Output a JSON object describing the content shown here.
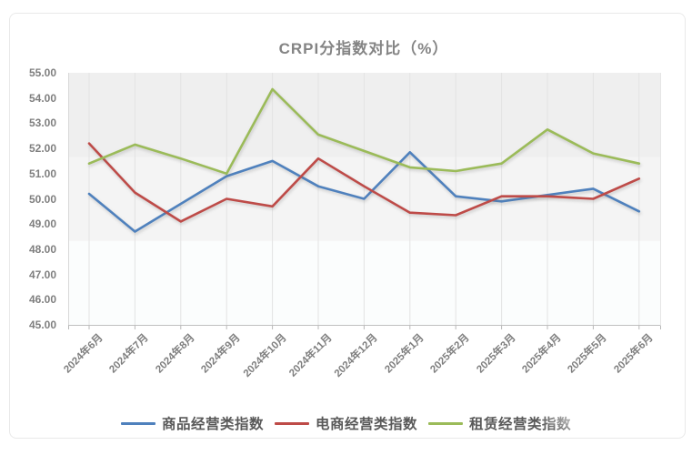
{
  "chart": {
    "title": "CRPI分指数对比（%）"
  },
  "chart_data": {
    "type": "line",
    "title": "CRPI分指数对比（%）",
    "xlabel": "",
    "ylabel": "",
    "ylim": [
      45,
      55
    ],
    "y_tick_step": 1,
    "y_ticks": [
      "55.00",
      "54.00",
      "53.00",
      "52.00",
      "51.00",
      "50.00",
      "49.00",
      "48.00",
      "47.00",
      "46.00",
      "45.00"
    ],
    "grid": "vertical-only",
    "legend_position": "bottom",
    "categories": [
      "2024年6月",
      "2024年7月",
      "2024年8月",
      "2024年9月",
      "2024年10月",
      "2024年11月",
      "2024年12月",
      "2025年1月",
      "2025年2月",
      "2025年3月",
      "2025年4月",
      "2025年5月",
      "2025年6月"
    ],
    "series": [
      {
        "key": "goods",
        "name": "商品经营类指数",
        "color": "#4f81bd",
        "values": [
          50.2,
          48.7,
          49.8,
          50.9,
          51.5,
          50.5,
          50.0,
          51.85,
          50.1,
          49.9,
          50.15,
          50.4,
          49.5
        ]
      },
      {
        "key": "ecommerce",
        "name": "电商经营类指数",
        "color": "#be4b48",
        "values": [
          52.2,
          50.25,
          49.1,
          50.0,
          49.7,
          51.6,
          50.5,
          49.45,
          49.35,
          50.1,
          50.1,
          50.0,
          50.8
        ]
      },
      {
        "key": "rental",
        "name": "租赁经营类指数",
        "color": "#9bbb59",
        "values": [
          51.4,
          52.15,
          51.6,
          51.0,
          54.35,
          52.55,
          51.9,
          51.25,
          51.1,
          51.4,
          52.75,
          51.8,
          51.4
        ]
      }
    ]
  }
}
